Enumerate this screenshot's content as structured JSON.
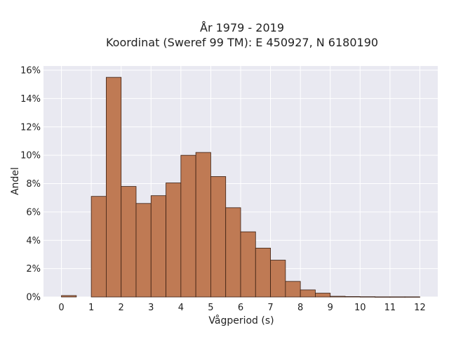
{
  "chart_data": {
    "type": "bar",
    "title_lines": [
      "År 1979 - 2019",
      "Koordinat (Sweref 99 TM): E 450927, N 6180190"
    ],
    "xlabel": "Vågperiod (s)",
    "ylabel": "Andel",
    "xlim": [
      -0.6,
      12.6
    ],
    "ylim": [
      0,
      16.3
    ],
    "x_ticks": [
      0,
      1,
      2,
      3,
      4,
      5,
      6,
      7,
      8,
      9,
      10,
      11,
      12
    ],
    "y_ticks": [
      0,
      2,
      4,
      6,
      8,
      10,
      12,
      14,
      16
    ],
    "y_tick_suffix": "%",
    "bin_width": 0.5,
    "bins": [
      {
        "start": 0.0,
        "value": 0.1
      },
      {
        "start": 1.0,
        "value": 7.1
      },
      {
        "start": 1.5,
        "value": 15.5
      },
      {
        "start": 2.0,
        "value": 7.8
      },
      {
        "start": 2.5,
        "value": 6.6
      },
      {
        "start": 3.0,
        "value": 7.15
      },
      {
        "start": 3.5,
        "value": 8.05
      },
      {
        "start": 4.0,
        "value": 10.0
      },
      {
        "start": 4.5,
        "value": 10.2
      },
      {
        "start": 5.0,
        "value": 8.5
      },
      {
        "start": 5.5,
        "value": 6.3
      },
      {
        "start": 6.0,
        "value": 4.6
      },
      {
        "start": 6.5,
        "value": 3.45
      },
      {
        "start": 7.0,
        "value": 2.6
      },
      {
        "start": 7.5,
        "value": 1.1
      },
      {
        "start": 8.0,
        "value": 0.5
      },
      {
        "start": 8.5,
        "value": 0.27
      },
      {
        "start": 9.0,
        "value": 0.05
      },
      {
        "start": 9.5,
        "value": 0.03
      },
      {
        "start": 10.0,
        "value": 0.02
      },
      {
        "start": 10.5,
        "value": 0.01
      },
      {
        "start": 11.0,
        "value": 0.01
      },
      {
        "start": 11.5,
        "value": 0.01
      }
    ],
    "grid": true,
    "colors": {
      "bar_fill": "#bf7a54",
      "bar_edge": "#3a1f12",
      "plot_background": "#e9e9f1",
      "grid": "#ffffff"
    }
  }
}
